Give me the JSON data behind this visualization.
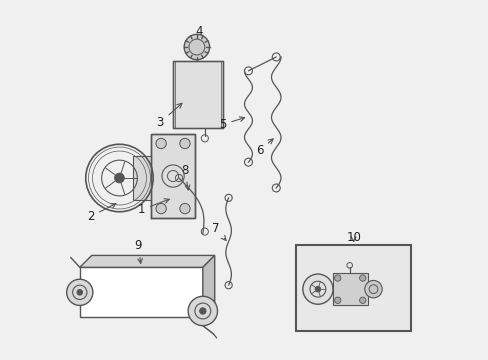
{
  "bg_color": "#f0f0f0",
  "line_color": "#555555",
  "label_color": "#222222",
  "figsize": [
    4.89,
    3.6
  ],
  "dpi": 100
}
